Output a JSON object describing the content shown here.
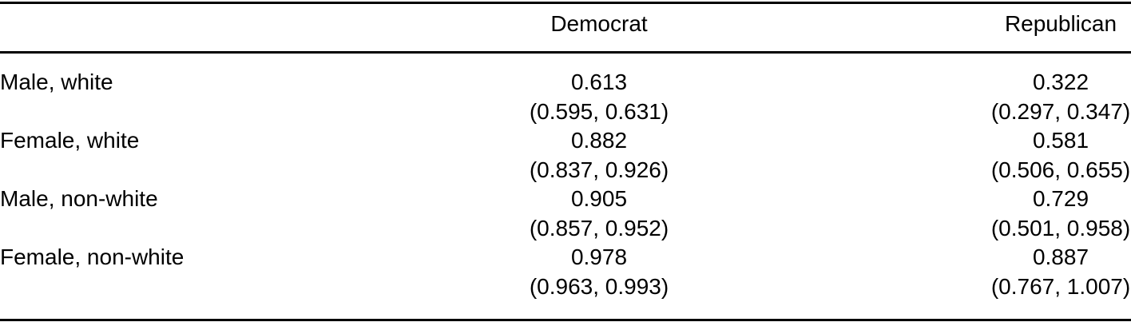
{
  "colors": {
    "text": "#000000",
    "background": "#ffffff",
    "rule": "#000000"
  },
  "table": {
    "header": {
      "label_col": "",
      "democrat": "Democrat",
      "republican": "Republican"
    },
    "rows": [
      {
        "label": "Male, white",
        "democrat": {
          "estimate": "0.613",
          "ci": "(0.595, 0.631)"
        },
        "republican": {
          "estimate": "0.322",
          "ci": "(0.297, 0.347)"
        }
      },
      {
        "label": "Female, white",
        "democrat": {
          "estimate": "0.882",
          "ci": "(0.837, 0.926)"
        },
        "republican": {
          "estimate": "0.581",
          "ci": "(0.506, 0.655)"
        }
      },
      {
        "label": "Male, non-white",
        "democrat": {
          "estimate": "0.905",
          "ci": "(0.857, 0.952)"
        },
        "republican": {
          "estimate": "0.729",
          "ci": "(0.501, 0.958)"
        }
      },
      {
        "label": "Female, non-white",
        "democrat": {
          "estimate": "0.978",
          "ci": "(0.963, 0.993)"
        },
        "republican": {
          "estimate": "0.887",
          "ci": "(0.767, 1.007)"
        }
      }
    ]
  }
}
